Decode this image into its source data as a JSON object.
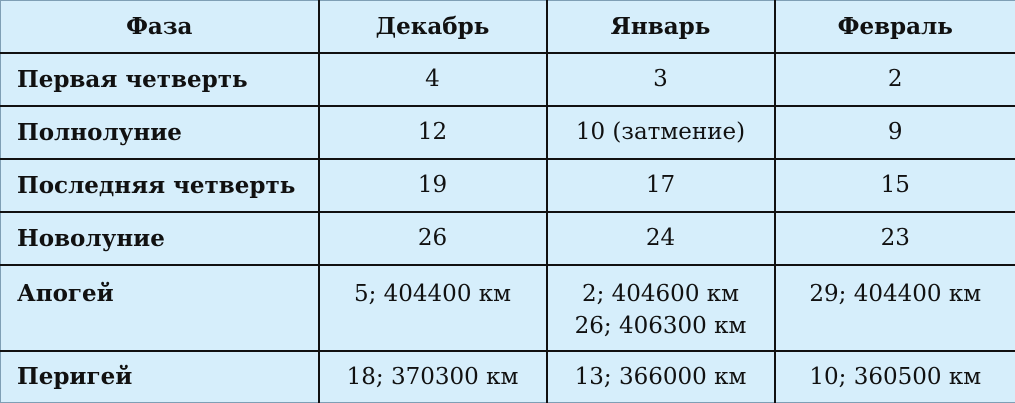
{
  "table": {
    "headers": [
      "Фаза",
      "Декабрь",
      "Январь",
      "Февраль"
    ],
    "rows": [
      {
        "phase": "Первая четверть",
        "values": [
          [
            "4"
          ],
          [
            "3"
          ],
          [
            "2"
          ]
        ]
      },
      {
        "phase": "Полнолуние",
        "values": [
          [
            "12"
          ],
          [
            "10 (затмение)"
          ],
          [
            "9"
          ]
        ]
      },
      {
        "phase": "Последняя четверть",
        "values": [
          [
            "19"
          ],
          [
            "17"
          ],
          [
            "15"
          ]
        ]
      },
      {
        "phase": "Новолуние",
        "values": [
          [
            "26"
          ],
          [
            "24"
          ],
          [
            "23"
          ]
        ]
      },
      {
        "phase": "Апогей",
        "values": [
          [
            "5; 404400 км"
          ],
          [
            "2; 404600 км",
            "26; 406300 км"
          ],
          [
            "29; 404400 км"
          ]
        ]
      },
      {
        "phase": "Перигей",
        "values": [
          [
            "18; 370300 км"
          ],
          [
            "13; 366000 км"
          ],
          [
            "10; 360500 км"
          ]
        ]
      }
    ]
  },
  "colors": {
    "background": "#d6eefb",
    "grid": "#111111"
  }
}
